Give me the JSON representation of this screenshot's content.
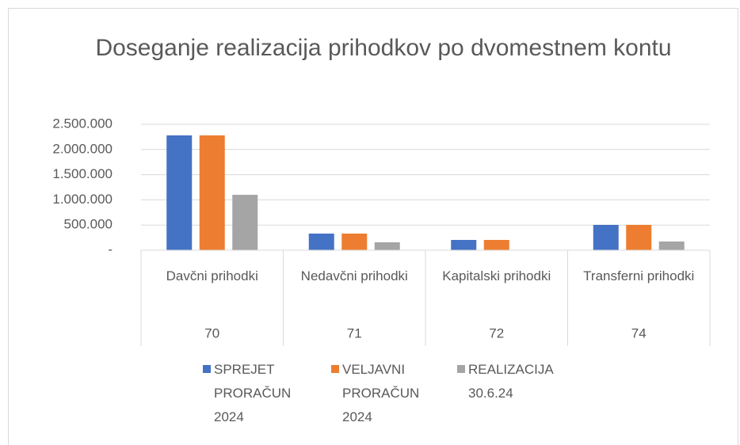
{
  "chart_data": {
    "type": "bar",
    "title": "Doseganje realizacija prihodkov po dvomestnem kontu",
    "categories": [
      "Davčni prihodki",
      "Nedavčni prihodki",
      "Kapitalski prihodki",
      "Transferni prihodki"
    ],
    "category_groups": [
      "70",
      "71",
      "72",
      "74"
    ],
    "series": [
      {
        "name": "SPREJET PRORAČUN 2024",
        "color": "#4472c4",
        "values": [
          2280000,
          330000,
          204000,
          503000
        ]
      },
      {
        "name": "VELJAVNI PRORAČUN 2024",
        "color": "#ed7d31",
        "values": [
          2280000,
          330000,
          204000,
          503000
        ]
      },
      {
        "name": "REALIZACIJA 30.6.24",
        "color": "#a5a5a5",
        "values": [
          1100000,
          157000,
          0,
          173000
        ]
      }
    ],
    "ylim": [
      0,
      2500000
    ],
    "yticks": [
      {
        "value": 0,
        "label": "-"
      },
      {
        "value": 500000,
        "label": "500.000"
      },
      {
        "value": 1000000,
        "label": "1.000.000"
      },
      {
        "value": 1500000,
        "label": "1.500.000"
      },
      {
        "value": 2000000,
        "label": "2.000.000"
      },
      {
        "value": 2500000,
        "label": "2.500.000"
      }
    ],
    "grid": true,
    "legend": "bottom"
  }
}
